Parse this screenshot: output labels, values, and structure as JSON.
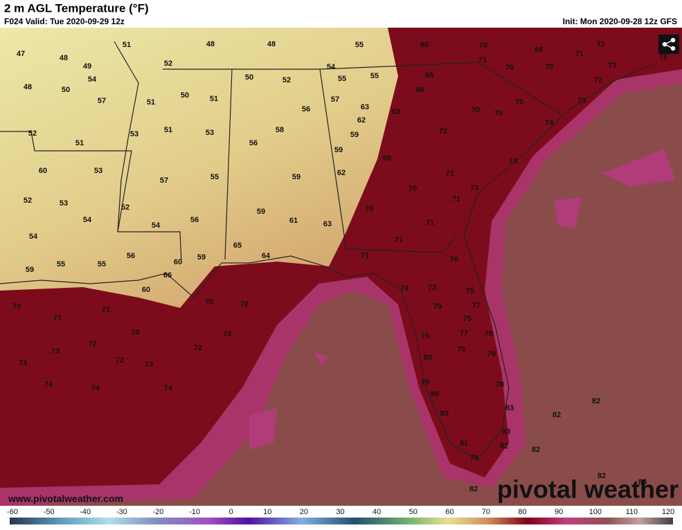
{
  "header": {
    "title": "2 m AGL Temperature (°F)",
    "valid": "F024 Valid: Tue 2020-09-29 12z",
    "init": "Init: Mon 2020-09-28 12z GFS"
  },
  "map": {
    "labels": [
      47,
      48,
      49,
      51,
      48,
      48,
      55,
      60,
      70,
      68,
      71,
      71,
      76,
      48,
      50,
      54,
      57,
      52,
      51,
      50,
      51,
      50,
      52,
      54,
      55,
      55,
      66,
      66,
      71,
      70,
      70,
      73,
      72,
      73,
      57,
      56,
      63,
      63,
      70,
      70,
      70,
      74,
      52,
      51,
      53,
      51,
      53,
      58,
      56,
      62,
      59,
      59,
      72,
      74,
      60,
      53,
      57,
      55,
      59,
      62,
      69,
      71,
      70,
      73,
      71,
      52,
      53,
      54,
      52,
      54,
      56,
      59,
      61,
      63,
      70,
      71,
      71,
      54,
      55,
      55,
      56,
      60,
      59,
      65,
      64,
      71,
      76,
      59,
      66,
      60,
      70,
      70,
      74,
      73,
      75,
      75,
      77,
      70,
      71,
      71,
      70,
      73,
      75,
      77,
      75,
      75,
      72,
      73,
      72,
      72,
      73,
      75,
      79,
      73,
      80,
      74,
      74,
      74,
      79,
      78,
      80,
      82,
      83,
      83,
      82,
      83,
      81,
      82,
      82,
      78,
      82,
      82,
      83
    ]
  },
  "footer": {
    "url": "www.pivotalweather.com",
    "brand": "pivotal weather"
  },
  "colorbar": {
    "ticks": [
      -60,
      -50,
      -40,
      -30,
      -20,
      -10,
      0,
      10,
      20,
      30,
      40,
      50,
      60,
      70,
      80,
      90,
      100,
      110,
      120
    ]
  }
}
